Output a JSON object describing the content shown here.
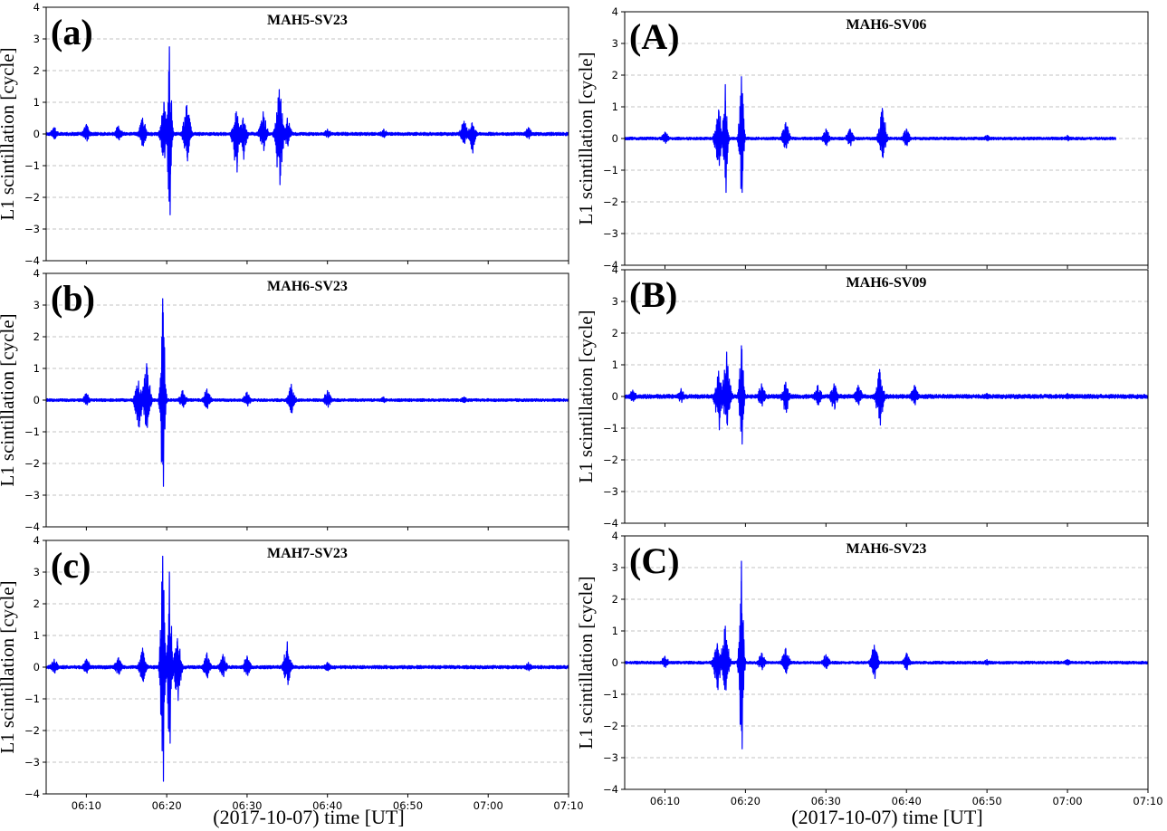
{
  "figure": {
    "xlabel_left": "(2017-10-07) time [UT]",
    "xlabel_right": "(2017-10-07) time [UT]"
  },
  "chart_data": [
    {
      "type": "line",
      "letter": "(a)",
      "title": "MAH5-SV23",
      "ylabel": "L1 scintillation [cycle]",
      "xlim": [
        "06:05",
        "07:10"
      ],
      "ylim": [
        -4,
        4
      ],
      "yticks": [
        "4",
        "3",
        "2",
        "1",
        "0",
        "−1",
        "−2",
        "−3",
        "−4"
      ],
      "xticks": [],
      "grid": "horizontal dashed",
      "color": "#0000ff",
      "data_end": "07:10",
      "noise": 0.035,
      "bursts": [
        {
          "t": "06:06",
          "amp": 0.2
        },
        {
          "t": "06:10",
          "amp": 0.3
        },
        {
          "t": "06:14",
          "amp": 0.25
        },
        {
          "t": "06:17",
          "amp": 0.5
        },
        {
          "t": "06:19:40",
          "amp": 1.0
        },
        {
          "t": "06:20:20",
          "amp": 2.75,
          "min": -2.55
        },
        {
          "t": "06:22:30",
          "amp": 0.9,
          "min": -0.85
        },
        {
          "t": "06:28:40",
          "amp": 0.7,
          "min": -1.2
        },
        {
          "t": "06:29:30",
          "amp": 0.5,
          "min": -0.8
        },
        {
          "t": "06:32:00",
          "amp": 0.7
        },
        {
          "t": "06:34:00",
          "amp": 1.4,
          "min": -1.6
        },
        {
          "t": "06:35:00",
          "amp": 0.5
        },
        {
          "t": "06:40:00",
          "amp": 0.15
        },
        {
          "t": "06:47:00",
          "amp": 0.15
        },
        {
          "t": "06:57:00",
          "amp": 0.4,
          "min": -0.3
        },
        {
          "t": "06:58:00",
          "amp": 0.35,
          "min": -0.6
        },
        {
          "t": "07:05:00",
          "amp": 0.2
        }
      ]
    },
    {
      "type": "line",
      "letter": "(b)",
      "title": "MAH6-SV23",
      "ylabel": "L1 scintillation [cycle]",
      "xlim": [
        "06:05",
        "07:10"
      ],
      "ylim": [
        -4,
        4
      ],
      "yticks": [
        "4",
        "3",
        "2",
        "1",
        "0",
        "−1",
        "−2",
        "−3",
        "−4"
      ],
      "xticks": [],
      "grid": "horizontal dashed",
      "color": "#0000ff",
      "data_end": "07:10",
      "noise": 0.03,
      "bursts": [
        {
          "t": "06:10",
          "amp": 0.2
        },
        {
          "t": "06:16:30",
          "amp": 0.6,
          "min": -0.85
        },
        {
          "t": "06:17:30",
          "amp": 1.15
        },
        {
          "t": "06:19:30",
          "amp": 3.2,
          "min": -2.72
        },
        {
          "t": "06:22:00",
          "amp": 0.3
        },
        {
          "t": "06:25:00",
          "amp": 0.35
        },
        {
          "t": "06:30:00",
          "amp": 0.25
        },
        {
          "t": "06:35:30",
          "amp": 0.5,
          "min": -0.4
        },
        {
          "t": "06:40:00",
          "amp": 0.3
        },
        {
          "t": "06:47:00",
          "amp": 0.1
        },
        {
          "t": "06:57:00",
          "amp": 0.1
        }
      ]
    },
    {
      "type": "line",
      "letter": "(c)",
      "title": "MAH7-SV23",
      "ylabel": "L1 scintillation [cycle]",
      "xlim": [
        "06:05",
        "07:10"
      ],
      "ylim": [
        -4,
        4
      ],
      "yticks": [
        "4",
        "3",
        "2",
        "1",
        "0",
        "−1",
        "−2",
        "−3",
        "−4"
      ],
      "xticks": [
        "06:10",
        "06:20",
        "06:30",
        "06:40",
        "06:50",
        "07:00",
        "07:10"
      ],
      "grid": "horizontal dashed",
      "color": "#0000ff",
      "data_end": "07:10",
      "noise": 0.035,
      "bursts": [
        {
          "t": "06:06",
          "amp": 0.25
        },
        {
          "t": "06:10",
          "amp": 0.25
        },
        {
          "t": "06:14",
          "amp": 0.3
        },
        {
          "t": "06:17",
          "amp": 0.6
        },
        {
          "t": "06:19:30",
          "amp": 3.5,
          "min": -3.6
        },
        {
          "t": "06:20:20",
          "amp": 3.0,
          "min": -2.4
        },
        {
          "t": "06:21:20",
          "amp": 0.9,
          "min": -1.05
        },
        {
          "t": "06:25:00",
          "amp": 0.45
        },
        {
          "t": "06:27:00",
          "amp": 0.4
        },
        {
          "t": "06:30:00",
          "amp": 0.35
        },
        {
          "t": "06:35:00",
          "amp": 0.8,
          "min": -0.55
        },
        {
          "t": "06:40:00",
          "amp": 0.15
        },
        {
          "t": "07:05:00",
          "amp": 0.15
        }
      ]
    },
    {
      "type": "line",
      "letter": "(A)",
      "title": "MAH6-SV06",
      "ylabel": "L1 scintillation [cycle]",
      "xlim": [
        "06:05",
        "07:10"
      ],
      "ylim": [
        -4,
        4
      ],
      "yticks": [
        "4",
        "3",
        "2",
        "1",
        "0",
        "−1",
        "−2",
        "−3",
        "−4"
      ],
      "xticks": [],
      "grid": "horizontal dashed",
      "color": "#0000ff",
      "data_end": "07:06",
      "noise": 0.03,
      "bursts": [
        {
          "t": "06:10",
          "amp": 0.2
        },
        {
          "t": "06:16:40",
          "amp": 0.9,
          "min": -0.85
        },
        {
          "t": "06:17:30",
          "amp": 1.7,
          "min": -1.7
        },
        {
          "t": "06:19:30",
          "amp": 1.95,
          "min": -1.7
        },
        {
          "t": "06:25:00",
          "amp": 0.5,
          "min": -0.3
        },
        {
          "t": "06:30:00",
          "amp": 0.3
        },
        {
          "t": "06:33:00",
          "amp": 0.3
        },
        {
          "t": "06:37:00",
          "amp": 0.95,
          "min": -0.6
        },
        {
          "t": "06:40:00",
          "amp": 0.3
        },
        {
          "t": "06:50:00",
          "amp": 0.1
        },
        {
          "t": "07:00:00",
          "amp": 0.1
        }
      ]
    },
    {
      "type": "line",
      "letter": "(B)",
      "title": "MAH6-SV09",
      "ylabel": "L1 scintillation [cycle]",
      "xlim": [
        "06:05",
        "07:10"
      ],
      "ylim": [
        -4,
        4
      ],
      "yticks": [
        "4",
        "3",
        "2",
        "1",
        "0",
        "−1",
        "−2",
        "−3",
        "−4"
      ],
      "xticks": [],
      "grid": "horizontal dashed",
      "color": "#0000ff",
      "data_end": "07:10",
      "noise": 0.045,
      "bursts": [
        {
          "t": "06:06",
          "amp": 0.2
        },
        {
          "t": "06:12",
          "amp": 0.25
        },
        {
          "t": "06:16:40",
          "amp": 0.8,
          "min": -1.05
        },
        {
          "t": "06:17:40",
          "amp": 1.4,
          "min": -0.9
        },
        {
          "t": "06:19:30",
          "amp": 1.6,
          "min": -1.5
        },
        {
          "t": "06:22:00",
          "amp": 0.4
        },
        {
          "t": "06:25:00",
          "amp": 0.45,
          "min": -0.5
        },
        {
          "t": "06:29:00",
          "amp": 0.35
        },
        {
          "t": "06:31:00",
          "amp": 0.4,
          "min": -0.4
        },
        {
          "t": "06:34:00",
          "amp": 0.35
        },
        {
          "t": "06:36:40",
          "amp": 0.85,
          "min": -0.9
        },
        {
          "t": "06:41:00",
          "amp": 0.35
        },
        {
          "t": "06:50:00",
          "amp": 0.1
        },
        {
          "t": "07:00:00",
          "amp": 0.1
        }
      ]
    },
    {
      "type": "line",
      "letter": "(C)",
      "title": "MAH6-SV23",
      "ylabel": "L1 scintillation [cycle]",
      "xlim": [
        "06:05",
        "07:10"
      ],
      "ylim": [
        -4,
        4
      ],
      "yticks": [
        "4",
        "3",
        "2",
        "1",
        "0",
        "−1",
        "−2",
        "−3",
        "−4"
      ],
      "xticks": [
        "06:10",
        "06:20",
        "06:30",
        "06:40",
        "06:50",
        "07:00",
        "07:10"
      ],
      "grid": "horizontal dashed",
      "color": "#0000ff",
      "data_end": "07:10",
      "noise": 0.03,
      "bursts": [
        {
          "t": "06:10",
          "amp": 0.2
        },
        {
          "t": "06:16:30",
          "amp": 0.6,
          "min": -0.85
        },
        {
          "t": "06:17:30",
          "amp": 1.15
        },
        {
          "t": "06:19:30",
          "amp": 3.2,
          "min": -2.72
        },
        {
          "t": "06:22:00",
          "amp": 0.3
        },
        {
          "t": "06:25:00",
          "amp": 0.45
        },
        {
          "t": "06:30:00",
          "amp": 0.25
        },
        {
          "t": "06:36:00",
          "amp": 0.55,
          "min": -0.5
        },
        {
          "t": "06:40:00",
          "amp": 0.3
        },
        {
          "t": "06:50:00",
          "amp": 0.1
        },
        {
          "t": "07:00:00",
          "amp": 0.1
        }
      ]
    }
  ]
}
